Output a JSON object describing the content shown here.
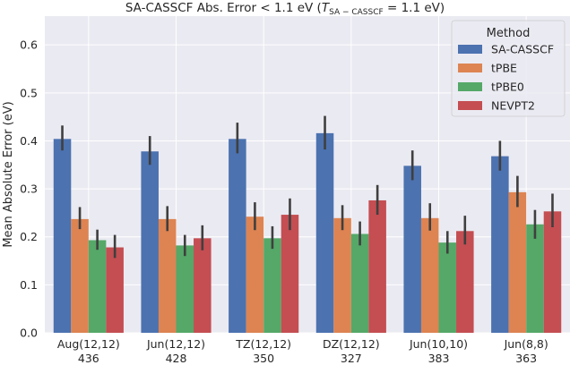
{
  "chart_data": {
    "type": "bar",
    "title_prefix": "SA-CASSCF Abs. Error < 1.1 eV (",
    "title_math_var": "T",
    "title_math_sub": "SA − CASSCF",
    "title_math_rest": " = 1.1 eV)",
    "xlabel": "",
    "ylabel": "Mean Absolute Error (eV)",
    "ylim": [
      0.0,
      0.66
    ],
    "yticks": [
      "0.0",
      "0.1",
      "0.2",
      "0.3",
      "0.4",
      "0.5",
      "0.6"
    ],
    "grid": true,
    "categories": [
      "Aug(12,12)",
      "Jun(12,12)",
      "TZ(12,12)",
      "DZ(12,12)",
      "Jun(10,10)",
      "Jun(8,8)"
    ],
    "category_counts": [
      "436",
      "428",
      "350",
      "327",
      "383",
      "363"
    ],
    "legend_title": "Method",
    "legend_position": "top-right",
    "series": [
      {
        "name": "SA-CASSCF",
        "color": "#4c72b0",
        "values": [
          0.404,
          0.378,
          0.404,
          0.416,
          0.348,
          0.368
        ],
        "err_low": [
          0.38,
          0.35,
          0.374,
          0.382,
          0.318,
          0.338
        ],
        "err_high": [
          0.432,
          0.41,
          0.438,
          0.452,
          0.38,
          0.4
        ]
      },
      {
        "name": "tPBE",
        "color": "#dd8452",
        "values": [
          0.237,
          0.237,
          0.242,
          0.239,
          0.239,
          0.293
        ],
        "err_low": [
          0.216,
          0.212,
          0.214,
          0.214,
          0.213,
          0.262
        ],
        "err_high": [
          0.262,
          0.264,
          0.272,
          0.266,
          0.27,
          0.327
        ]
      },
      {
        "name": "tPBE0",
        "color": "#55a868",
        "values": [
          0.193,
          0.182,
          0.197,
          0.206,
          0.188,
          0.226
        ],
        "err_low": [
          0.173,
          0.16,
          0.175,
          0.182,
          0.165,
          0.196
        ],
        "err_high": [
          0.215,
          0.204,
          0.222,
          0.232,
          0.212,
          0.256
        ]
      },
      {
        "name": "NEVPT2",
        "color": "#c44e52",
        "values": [
          0.178,
          0.197,
          0.246,
          0.276,
          0.212,
          0.253
        ],
        "err_low": [
          0.156,
          0.172,
          0.214,
          0.246,
          0.184,
          0.22
        ],
        "err_high": [
          0.204,
          0.224,
          0.28,
          0.308,
          0.244,
          0.29
        ]
      }
    ]
  }
}
